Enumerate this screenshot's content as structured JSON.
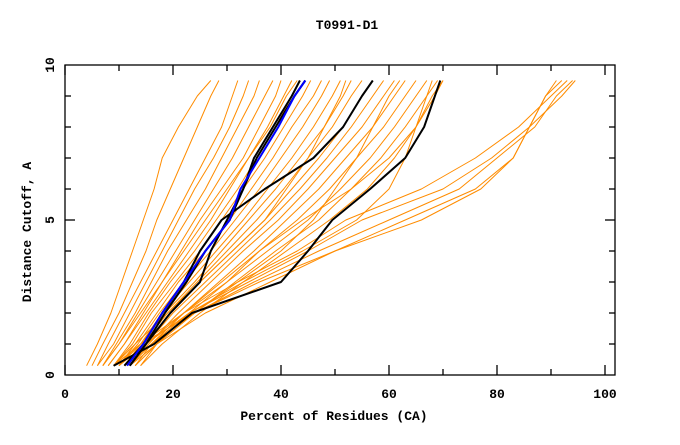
{
  "chart_data": {
    "type": "line",
    "title": "T0991-D1",
    "xlabel": "Percent of Residues (CA)",
    "ylabel": "Distance Cutoff, A",
    "xlim": [
      0,
      102
    ],
    "ylim": [
      0,
      10
    ],
    "x_ticks": [
      "0",
      "20",
      "40",
      "60",
      "80",
      "100"
    ],
    "y_ticks": [
      "0",
      "5",
      "10"
    ],
    "grid": false,
    "colors": {
      "models": "#ff8c00",
      "highlight": "#000000",
      "reference": "#0000ff"
    },
    "y": [
      0.3,
      1,
      2,
      3,
      4,
      5,
      6,
      7,
      8,
      9,
      9.5
    ],
    "series_models": [
      [
        4,
        6,
        8.5,
        10.5,
        12.5,
        14.5,
        16.5,
        18,
        21,
        24.5,
        27
      ],
      [
        5,
        7,
        10,
        12.5,
        15,
        17,
        19.5,
        22,
        24.5,
        27,
        28.5
      ],
      [
        6,
        8,
        11,
        14,
        17,
        20,
        23,
        26,
        29,
        31,
        32
      ],
      [
        6,
        9,
        12,
        15,
        18,
        21,
        24,
        27.5,
        30.5,
        33,
        34
      ],
      [
        7,
        9.5,
        13,
        16,
        19,
        22.5,
        26,
        29,
        32,
        35,
        36
      ],
      [
        7,
        10,
        13.5,
        17,
        20.5,
        24,
        27.5,
        31,
        34,
        37,
        38.5
      ],
      [
        8,
        11,
        14.5,
        18,
        21.5,
        25,
        29,
        33,
        36,
        39,
        40
      ],
      [
        8,
        11,
        15,
        19,
        23,
        27,
        30.5,
        34,
        37.5,
        40.5,
        42
      ],
      [
        9,
        12,
        15.5,
        19.5,
        24,
        28,
        32,
        35.5,
        39,
        42,
        43.5
      ],
      [
        9,
        12.5,
        16,
        20.5,
        25,
        29,
        33,
        37,
        40.5,
        44,
        45.5
      ],
      [
        10,
        13,
        17,
        21,
        26,
        30.5,
        34.5,
        38.5,
        42,
        46,
        47.5
      ],
      [
        10,
        13.5,
        17.5,
        22,
        27,
        31.5,
        36,
        40,
        44,
        47.5,
        49
      ],
      [
        10,
        14,
        18,
        23,
        28,
        33,
        37.5,
        42,
        46,
        49.5,
        51
      ],
      [
        11,
        14,
        18.5,
        24,
        29,
        34,
        39,
        43.5,
        48,
        51.5,
        53
      ],
      [
        11,
        14.5,
        19,
        24.5,
        30,
        35.5,
        40.5,
        45,
        49.5,
        53,
        55
      ],
      [
        11,
        15,
        19.5,
        25,
        31,
        37,
        42,
        47,
        51.5,
        55,
        57
      ],
      [
        12,
        15,
        20,
        26,
        32,
        38,
        43.5,
        48.5,
        53,
        57,
        59
      ],
      [
        12,
        15.5,
        21,
        27,
        33,
        39.5,
        45,
        50,
        55,
        59,
        61
      ],
      [
        12,
        16,
        22,
        28.5,
        35,
        41,
        47,
        52,
        57,
        61,
        63
      ],
      [
        13,
        16,
        22,
        29,
        36,
        43,
        49,
        54,
        59,
        63,
        65
      ],
      [
        13,
        17,
        23,
        30,
        37.5,
        45,
        51,
        56.5,
        61,
        65,
        67
      ],
      [
        13,
        17,
        24,
        31.5,
        39,
        47,
        53,
        58.5,
        63,
        67,
        69
      ],
      [
        14,
        18,
        25,
        33,
        41,
        49,
        56,
        61,
        65,
        68.5,
        70
      ],
      [
        11,
        15,
        22,
        30,
        36,
        44,
        53,
        60,
        65,
        68,
        70
      ],
      [
        9,
        14,
        22,
        32,
        43,
        52,
        66,
        76,
        84,
        90,
        93
      ],
      [
        10,
        15,
        23,
        34,
        45,
        55,
        70,
        79,
        86,
        92,
        94.5
      ],
      [
        11,
        16,
        24,
        35,
        47,
        60,
        73,
        80,
        87,
        91,
        94
      ],
      [
        12,
        17,
        26,
        38,
        50,
        63,
        76,
        83,
        86,
        89,
        91
      ],
      [
        10,
        14,
        24,
        36,
        50,
        66,
        77,
        83,
        86,
        89,
        92
      ],
      [
        12,
        16,
        23,
        33,
        44,
        54,
        60,
        63,
        65,
        67,
        68
      ],
      [
        7,
        10,
        14,
        18,
        22,
        26,
        30,
        34,
        38,
        41,
        43
      ],
      [
        9,
        13,
        19,
        25,
        31,
        37,
        41,
        45,
        48,
        51,
        52
      ],
      [
        14,
        17,
        24,
        32,
        40,
        46,
        50,
        54,
        57,
        60,
        62
      ]
    ],
    "series_highlight": [
      [
        12,
        15,
        18.5,
        22.5,
        26,
        30.5,
        33,
        35.5,
        39,
        42.5,
        44.5
      ],
      [
        12,
        15,
        19.5,
        25,
        27,
        30,
        33,
        35,
        38.5,
        42,
        43.5
      ],
      [
        11,
        14.5,
        18,
        22,
        25,
        29,
        37,
        46,
        51.5,
        55,
        57
      ],
      [
        9,
        16.5,
        23.5,
        40,
        45,
        49.5,
        56.5,
        63,
        66.5,
        68.5,
        69.5
      ]
    ],
    "series_reference": [
      11.5,
      14.5,
      18,
      22,
      26,
      30.5,
      32.5,
      36,
      39.5,
      42.5,
      44.5
    ]
  }
}
